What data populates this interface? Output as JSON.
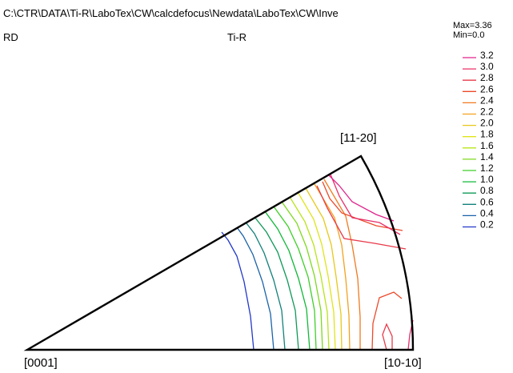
{
  "header": {
    "path": "C:\\CTR\\DATA\\Ti-R\\LaboTex\\CW\\calcdefocus\\Newdata\\LaboTex\\CW\\Inve",
    "direction": "RD",
    "material": "Ti-R",
    "max_label": "Max=3.36",
    "min_label": "Min=0.0"
  },
  "poles": {
    "top": "[11-20]",
    "bottom_left": "[0001]",
    "bottom_right": "[10-10]"
  },
  "chart_data": {
    "type": "contour",
    "title": "Ti-R",
    "max": 3.36,
    "min": 0.0,
    "levels": [
      {
        "value": "3.2",
        "color": "#e0238c"
      },
      {
        "value": "3.0",
        "color": "#e8306a"
      },
      {
        "value": "2.8",
        "color": "#e83a4a"
      },
      {
        "value": "2.6",
        "color": "#ec4a2a"
      },
      {
        "value": "2.4",
        "color": "#f07a20"
      },
      {
        "value": "2.2",
        "color": "#f3a21e"
      },
      {
        "value": "2.0",
        "color": "#e8c81a"
      },
      {
        "value": "1.8",
        "color": "#e0e41a"
      },
      {
        "value": "1.6",
        "color": "#b8e41a"
      },
      {
        "value": "1.4",
        "color": "#7ed81e"
      },
      {
        "value": "1.2",
        "color": "#3ecf28"
      },
      {
        "value": "1.0",
        "color": "#10b838"
      },
      {
        "value": "0.8",
        "color": "#109858"
      },
      {
        "value": "0.6",
        "color": "#12807a"
      },
      {
        "value": "0.4",
        "color": "#1a62a8"
      },
      {
        "value": "0.2",
        "color": "#2238c8"
      }
    ]
  }
}
